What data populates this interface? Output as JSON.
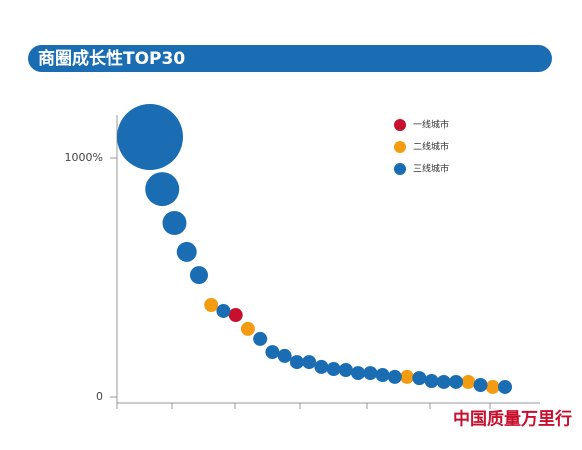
{
  "chart_data": {
    "type": "bubble",
    "title": "商圈成长性TOP30",
    "categories": [
      null,
      null,
      null,
      null,
      null,
      null,
      null,
      null,
      null,
      null,
      null,
      null,
      null,
      null,
      null,
      null,
      null,
      null,
      null,
      null,
      null,
      null,
      null,
      null,
      null,
      null,
      null,
      null,
      null,
      null
    ],
    "series": [
      {
        "name": "一线城市",
        "color": "#c8102e",
        "values": [
          null,
          null,
          null,
          null,
          null,
          null,
          null,
          343,
          null,
          null,
          null,
          null,
          null,
          null,
          null,
          null,
          null,
          null,
          null,
          null,
          null,
          null,
          null,
          null,
          null,
          null,
          null,
          null,
          null,
          null
        ],
        "sizes": [
          null,
          null,
          null,
          null,
          null,
          null,
          null,
          7,
          null,
          null,
          null,
          null,
          null,
          null,
          null,
          null,
          null,
          null,
          null,
          null,
          null,
          null,
          null,
          null,
          null,
          null,
          null,
          null,
          null,
          null
        ]
      },
      {
        "name": "二线城市",
        "color": "#f39c12",
        "values": [
          null,
          null,
          null,
          null,
          null,
          385,
          null,
          null,
          285,
          null,
          null,
          null,
          null,
          null,
          null,
          null,
          null,
          null,
          null,
          null,
          null,
          84,
          null,
          null,
          null,
          null,
          63,
          null,
          42,
          null
        ],
        "sizes": [
          null,
          null,
          null,
          null,
          null,
          7,
          null,
          null,
          7,
          null,
          null,
          null,
          null,
          null,
          null,
          null,
          null,
          null,
          null,
          null,
          null,
          7,
          null,
          null,
          null,
          null,
          7,
          null,
          7,
          null
        ]
      },
      {
        "name": "三线城市",
        "color": "#1a6db3",
        "values": [
          1088,
          870,
          728,
          607,
          510,
          null,
          360,
          null,
          null,
          243,
          188,
          172,
          146,
          146,
          126,
          117,
          113,
          100,
          100,
          92,
          84,
          null,
          79,
          67,
          63,
          63,
          null,
          50,
          null,
          42
        ],
        "sizes": [
          33,
          17,
          12,
          10,
          9,
          null,
          7,
          null,
          null,
          7,
          7,
          7,
          7,
          7,
          7,
          7,
          7,
          7,
          7,
          7,
          7,
          null,
          7,
          7,
          7,
          7,
          null,
          7,
          null,
          7
        ]
      }
    ],
    "ylim": [
      0,
      1180
    ],
    "yticks": [
      0,
      {
        "value": 1000,
        "label": "1000%"
      }
    ],
    "legend": "upper-right",
    "watermark": "中国质量万里行"
  }
}
